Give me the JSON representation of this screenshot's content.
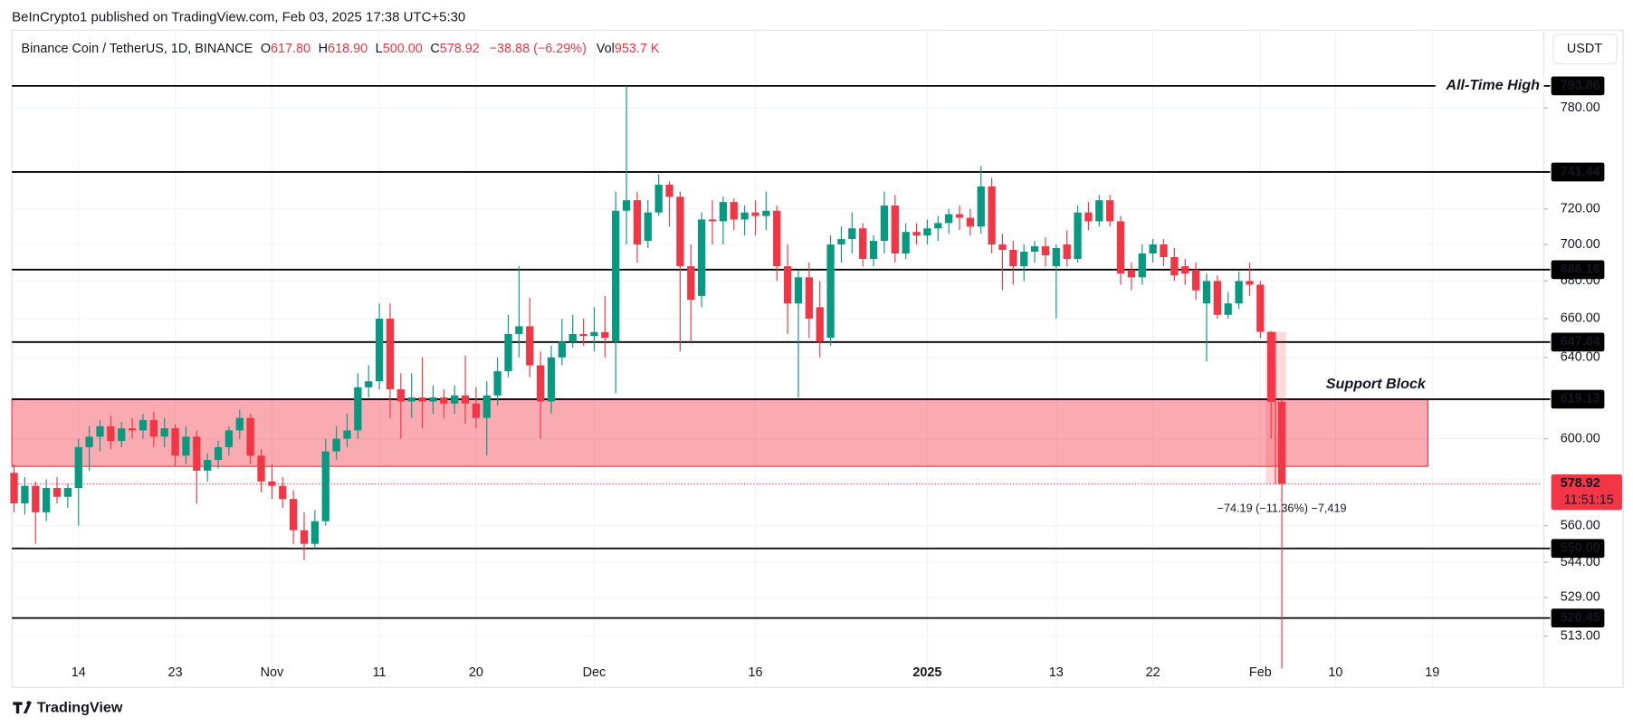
{
  "header": {
    "published": "BeInCrypto1 published on TradingView.com, Feb 03, 2025 17:38 UTC+5:30",
    "symbol": "Binance Coin / TetherUS, 1D, BINANCE",
    "ohlc": [
      {
        "key": "O",
        "value": "617.80"
      },
      {
        "key": "H",
        "value": "618.90"
      },
      {
        "key": "L",
        "value": "500.00"
      },
      {
        "key": "C",
        "value": "578.92"
      }
    ],
    "change": "−38.88 (−6.29%)",
    "volume": {
      "key": "Vol",
      "value": "953.7 K"
    },
    "currency": "USDT"
  },
  "footer": {
    "brand": "TradingView"
  },
  "chart_data": {
    "type": "candlestick",
    "up_color": "#089981",
    "down_color": "#f23645",
    "log_scale": true,
    "grid": true,
    "open": [
      584,
      570,
      578,
      566,
      577,
      573,
      577,
      596,
      601,
      606,
      599,
      605,
      604,
      609,
      601,
      605,
      592,
      601,
      585,
      590,
      596,
      604,
      610,
      592,
      580,
      578,
      572,
      558,
      552,
      562,
      594,
      600,
      604,
      625,
      628,
      660,
      624,
      618,
      620,
      618,
      620,
      617,
      621,
      617,
      610,
      621,
      633,
      652,
      656,
      636,
      618,
      640,
      648,
      652,
      651,
      653,
      648,
      719,
      725,
      702,
      718,
      734,
      727,
      688,
      672,
      714,
      713,
      724,
      714,
      718,
      716,
      719,
      688,
      668,
      682,
      666,
      650,
      700,
      703,
      709,
      692,
      702,
      722,
      695,
      707,
      705,
      709,
      712,
      717,
      715,
      710,
      733,
      700,
      697,
      688,
      696,
      699,
      688,
      700,
      692,
      718,
      713,
      725,
      713,
      686,
      682,
      695,
      700,
      693,
      688,
      686,
      668,
      680,
      662,
      668,
      680,
      678,
      653.11,
      617.8
    ],
    "high": [
      588,
      582,
      580,
      581,
      582,
      579,
      600,
      606,
      609,
      611,
      608,
      610,
      612,
      613,
      610,
      607,
      606,
      604,
      593,
      599,
      606,
      614,
      612,
      595,
      588,
      582,
      576,
      566,
      567,
      600,
      606,
      612,
      632,
      636,
      668,
      668,
      632,
      632,
      640,
      626,
      624,
      626,
      641,
      625,
      628,
      640,
      662,
      688,
      671,
      643,
      646,
      660,
      662,
      660,
      666,
      672,
      730,
      793.86,
      730,
      725,
      740,
      736,
      730,
      700,
      718,
      725,
      727,
      726,
      722,
      725,
      730,
      722,
      700,
      686,
      690,
      680,
      705,
      710,
      718,
      712,
      705,
      730,
      728,
      712,
      712,
      714,
      716,
      720,
      722,
      720,
      745,
      738,
      706,
      702,
      700,
      702,
      704,
      700,
      708,
      722,
      724,
      728,
      728,
      716,
      690,
      700,
      703,
      703,
      698,
      692,
      690,
      684,
      683,
      674,
      685,
      690,
      680,
      653.5,
      618.9
    ],
    "low": [
      566,
      565,
      552,
      562,
      570,
      568,
      560,
      585,
      594,
      595,
      596,
      600,
      600,
      596,
      596,
      587,
      588,
      570,
      580,
      586,
      592,
      600,
      588,
      575,
      572,
      568,
      552,
      545,
      550,
      560,
      590,
      596,
      600,
      620,
      624,
      610,
      600,
      610,
      605,
      612,
      610,
      612,
      607,
      605,
      592,
      616,
      630,
      640,
      630,
      600,
      612,
      636,
      645,
      646,
      643,
      640,
      622,
      700,
      690,
      698,
      716,
      710,
      643,
      648,
      666,
      700,
      700,
      708,
      705,
      705,
      708,
      680,
      652,
      620,
      650,
      640,
      646,
      690,
      695,
      688,
      688,
      695,
      690,
      692,
      700,
      700,
      702,
      706,
      708,
      705,
      706,
      695,
      675,
      678,
      680,
      690,
      688,
      660,
      688,
      690,
      708,
      710,
      710,
      678,
      675,
      678,
      690,
      688,
      680,
      678,
      670,
      638,
      660,
      660,
      665,
      672,
      650,
      600,
      500.0
    ],
    "close": [
      570,
      578,
      566,
      577,
      573,
      577,
      596,
      601,
      606,
      599,
      605,
      604,
      609,
      601,
      605,
      592,
      601,
      585,
      590,
      596,
      604,
      610,
      592,
      580,
      578,
      572,
      558,
      552,
      562,
      594,
      600,
      604,
      625,
      628,
      660,
      624,
      618,
      620,
      618,
      620,
      617,
      621,
      617,
      610,
      621,
      633,
      652,
      656,
      636,
      618,
      640,
      648,
      652,
      651,
      653,
      650,
      719,
      725,
      700,
      718,
      734,
      727,
      688,
      670,
      714,
      713,
      724,
      714,
      718,
      716,
      719,
      688,
      668,
      682,
      660,
      648,
      700,
      703,
      709,
      692,
      702,
      722,
      695,
      707,
      705,
      709,
      712,
      717,
      715,
      710,
      733,
      700,
      697,
      688,
      696,
      699,
      694,
      698,
      692,
      718,
      713,
      725,
      713,
      684,
      682,
      695,
      700,
      693,
      683,
      684,
      675,
      680,
      662,
      668,
      680,
      678,
      653.11,
      617.8,
      578.92
    ],
    "xlim": [
      -0.2,
      142.2
    ],
    "xticks": [
      {
        "value": 6,
        "label": "14"
      },
      {
        "value": 15,
        "label": "23"
      },
      {
        "value": 24,
        "label": "Nov"
      },
      {
        "value": 34,
        "label": "11"
      },
      {
        "value": 43,
        "label": "20"
      },
      {
        "value": 54,
        "label": "Dec"
      },
      {
        "value": 69,
        "label": "16"
      },
      {
        "value": 85,
        "label": "2025"
      },
      {
        "value": 97,
        "label": "13"
      },
      {
        "value": 106,
        "label": "22"
      },
      {
        "value": 116,
        "label": "Feb"
      },
      {
        "value": 123,
        "label": "10"
      },
      {
        "value": 132,
        "label": "19"
      }
    ],
    "ylim": [
      493,
      829
    ],
    "yticks": [
      {
        "value": 780,
        "label": "780.00"
      },
      {
        "value": 720,
        "label": "720.00"
      },
      {
        "value": 700,
        "label": "700.00"
      },
      {
        "value": 680,
        "label": "680.00"
      },
      {
        "value": 660,
        "label": "660.00"
      },
      {
        "value": 640,
        "label": "640.00"
      },
      {
        "value": 600,
        "label": "600.00"
      },
      {
        "value": 560,
        "label": "560.00"
      },
      {
        "value": 544,
        "label": "544.00"
      },
      {
        "value": 529,
        "label": "529.00"
      },
      {
        "value": 513,
        "label": "513.00"
      }
    ],
    "levels": [
      {
        "value": 793.86,
        "name": "All-Time High"
      },
      {
        "value": 741.44
      },
      {
        "value": 686.16
      },
      {
        "value": 647.84
      },
      {
        "value": 619.13
      },
      {
        "value": 550,
        "label": "550.00"
      },
      {
        "value": 520.45
      }
    ],
    "zone": {
      "label": "Support Block",
      "top": 619.13,
      "bottom": 587,
      "x_end": 131.6,
      "color": "#f23645"
    },
    "last": {
      "value": 578.92,
      "countdown": "11:51:15"
    },
    "measure": {
      "text": "−74.19 (−11.36%) −7,419",
      "from": 653.11,
      "to": 578.92
    }
  }
}
